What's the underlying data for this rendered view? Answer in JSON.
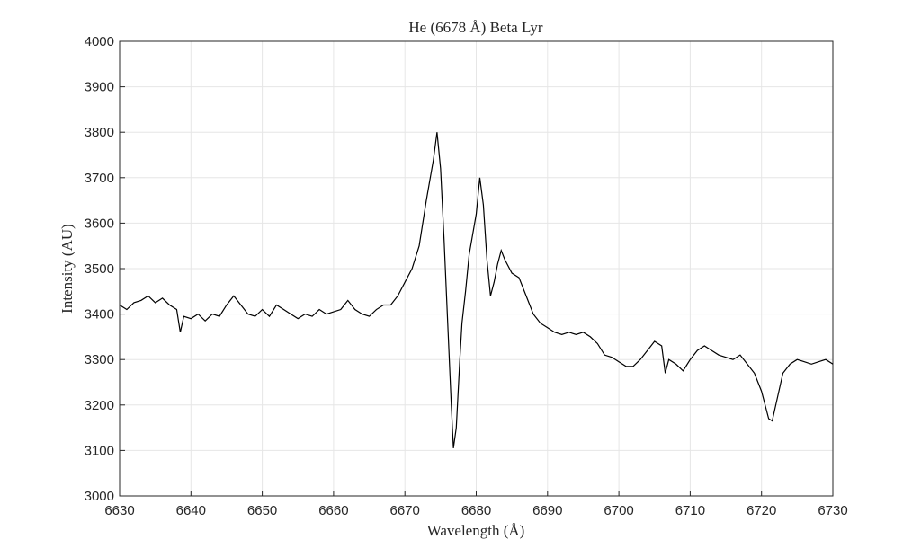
{
  "chart_data": {
    "type": "line",
    "title": "He (6678 Å) Beta Lyr",
    "x_label": "Wavelength (Å)",
    "y_label": "Intensity (AU)",
    "xlim": [
      6630,
      6730
    ],
    "ylim": [
      3000,
      4000
    ],
    "xticks": [
      6630,
      6640,
      6650,
      6660,
      6670,
      6680,
      6690,
      6700,
      6710,
      6720,
      6730
    ],
    "yticks": [
      3000,
      3100,
      3200,
      3300,
      3400,
      3500,
      3600,
      3700,
      3800,
      3900,
      4000
    ],
    "grid": true,
    "series": [
      {
        "color": "#000000",
        "x": [
          6630,
          6631,
          6632,
          6633,
          6634,
          6635,
          6636,
          6637,
          6638,
          6638.5,
          6639,
          6640,
          6641,
          6642,
          6643,
          6644,
          6645,
          6646,
          6647,
          6648,
          6649,
          6650,
          6651,
          6652,
          6653,
          6654,
          6655,
          6656,
          6657,
          6658,
          6659,
          6660,
          6661,
          6662,
          6663,
          6664,
          6665,
          6666,
          6667,
          6668,
          6669,
          6670,
          6671,
          6672,
          6673,
          6674,
          6674.5,
          6675,
          6675.5,
          6676,
          6676.5,
          6676.8,
          6677.2,
          6677.7,
          6678,
          6678.5,
          6679,
          6680,
          6680.5,
          6681,
          6681.5,
          6682,
          6682.5,
          6683,
          6683.5,
          6684,
          6685,
          6686,
          6687,
          6688,
          6689,
          6690,
          6691,
          6692,
          6693,
          6694,
          6695,
          6696,
          6697,
          6698,
          6699,
          6700,
          6701,
          6702,
          6703,
          6704,
          6705,
          6706,
          6706.5,
          6707,
          6708,
          6709,
          6710,
          6711,
          6712,
          6713,
          6714,
          6715,
          6716,
          6717,
          6718,
          6719,
          6720,
          6721,
          6721.5,
          6722,
          6723,
          6724,
          6725,
          6726,
          6727,
          6728,
          6729,
          6730
        ],
        "values": [
          3420,
          3410,
          3425,
          3430,
          3440,
          3425,
          3435,
          3420,
          3410,
          3360,
          3395,
          3390,
          3400,
          3385,
          3400,
          3395,
          3420,
          3440,
          3420,
          3400,
          3395,
          3410,
          3395,
          3420,
          3410,
          3400,
          3390,
          3400,
          3395,
          3410,
          3400,
          3405,
          3410,
          3430,
          3410,
          3400,
          3395,
          3410,
          3420,
          3420,
          3440,
          3470,
          3500,
          3550,
          3650,
          3740,
          3800,
          3720,
          3560,
          3380,
          3200,
          3105,
          3150,
          3300,
          3380,
          3450,
          3530,
          3620,
          3700,
          3640,
          3520,
          3440,
          3470,
          3510,
          3540,
          3520,
          3490,
          3480,
          3440,
          3400,
          3380,
          3370,
          3360,
          3355,
          3360,
          3355,
          3360,
          3350,
          3335,
          3310,
          3305,
          3295,
          3285,
          3285,
          3300,
          3320,
          3340,
          3330,
          3270,
          3300,
          3290,
          3275,
          3300,
          3320,
          3330,
          3320,
          3310,
          3305,
          3300,
          3310,
          3290,
          3270,
          3230,
          3170,
          3165,
          3200,
          3270,
          3290,
          3300,
          3295,
          3290,
          3295,
          3300,
          3290
        ]
      }
    ]
  }
}
